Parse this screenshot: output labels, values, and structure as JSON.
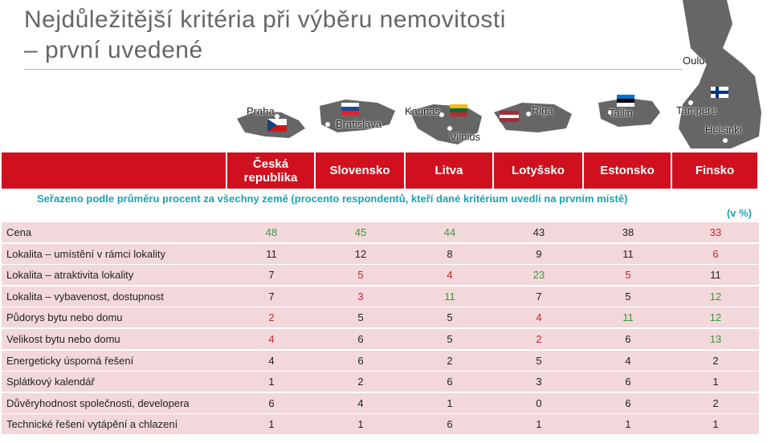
{
  "title": [
    "Nejdůležitější kritéria při výběru nemovitosti",
    "– první uvedené"
  ],
  "map": {
    "labels": [
      "Praha",
      "Bratislava",
      "Kaunas",
      "Vilnius",
      "Riga",
      "Tallin",
      "Oulu",
      "Tampere",
      "Helsinki"
    ]
  },
  "table": {
    "columns": [
      "Česká republika",
      "Slovensko",
      "Litva",
      "Lotyšsko",
      "Estonsko",
      "Finsko"
    ],
    "note": [
      "Seřazeno podle průměru procent za všechny země (procento respondentů, kteří dané kritérium uvedli na prvním místě)",
      "(v %)"
    ],
    "rows": [
      {
        "label": "Cena",
        "values": [
          48,
          45,
          44,
          43,
          38,
          33
        ],
        "colors": [
          "#3a9a3a",
          "#3a9a3a",
          "#3a9a3a",
          "#222222",
          "#222222",
          "#c0282a"
        ]
      },
      {
        "label": "Lokalita – umístění v rámci lokality",
        "values": [
          11,
          12,
          8,
          9,
          11,
          6
        ],
        "colors": [
          "#222222",
          "#222222",
          "#222222",
          "#222222",
          "#222222",
          "#c0282a"
        ]
      },
      {
        "label": "Lokalita – atraktivita lokality",
        "values": [
          7,
          5,
          4,
          23,
          5,
          11
        ],
        "colors": [
          "#222222",
          "#c0282a",
          "#c0282a",
          "#3a9a3a",
          "#c0282a",
          "#222222"
        ]
      },
      {
        "label": "Lokalita – vybavenost, dostupnost",
        "values": [
          7,
          3,
          11,
          7,
          5,
          12
        ],
        "colors": [
          "#222222",
          "#c0282a",
          "#3a9a3a",
          "#222222",
          "#222222",
          "#3a9a3a"
        ]
      },
      {
        "label": "Půdorys bytu nebo domu",
        "values": [
          2,
          5,
          5,
          4,
          11,
          12
        ],
        "colors": [
          "#c0282a",
          "#222222",
          "#222222",
          "#c0282a",
          "#3a9a3a",
          "#3a9a3a"
        ]
      },
      {
        "label": "Velikost bytu nebo domu",
        "values": [
          4,
          6,
          5,
          2,
          6,
          13
        ],
        "colors": [
          "#c0282a",
          "#222222",
          "#222222",
          "#c0282a",
          "#222222",
          "#3a9a3a"
        ]
      },
      {
        "label": "Energeticky úsporná řešení",
        "values": [
          4,
          6,
          2,
          5,
          4,
          2
        ],
        "colors": [
          "#222222",
          "#222222",
          "#222222",
          "#222222",
          "#222222",
          "#222222"
        ]
      },
      {
        "label": "Splátkový kalendář",
        "values": [
          1,
          2,
          6,
          3,
          6,
          1
        ],
        "colors": [
          "#222222",
          "#222222",
          "#222222",
          "#222222",
          "#222222",
          "#222222"
        ]
      },
      {
        "label": "Důvěryhodnost společnosti, developera",
        "values": [
          6,
          4,
          1,
          0,
          6,
          2
        ],
        "colors": [
          "#222222",
          "#222222",
          "#222222",
          "#222222",
          "#222222",
          "#222222"
        ]
      },
      {
        "label": "Technické řešení vytápění a chlazení",
        "values": [
          1,
          1,
          6,
          1,
          1,
          1
        ],
        "colors": [
          "#222222",
          "#222222",
          "#222222",
          "#222222",
          "#222222",
          "#222222"
        ]
      }
    ]
  }
}
